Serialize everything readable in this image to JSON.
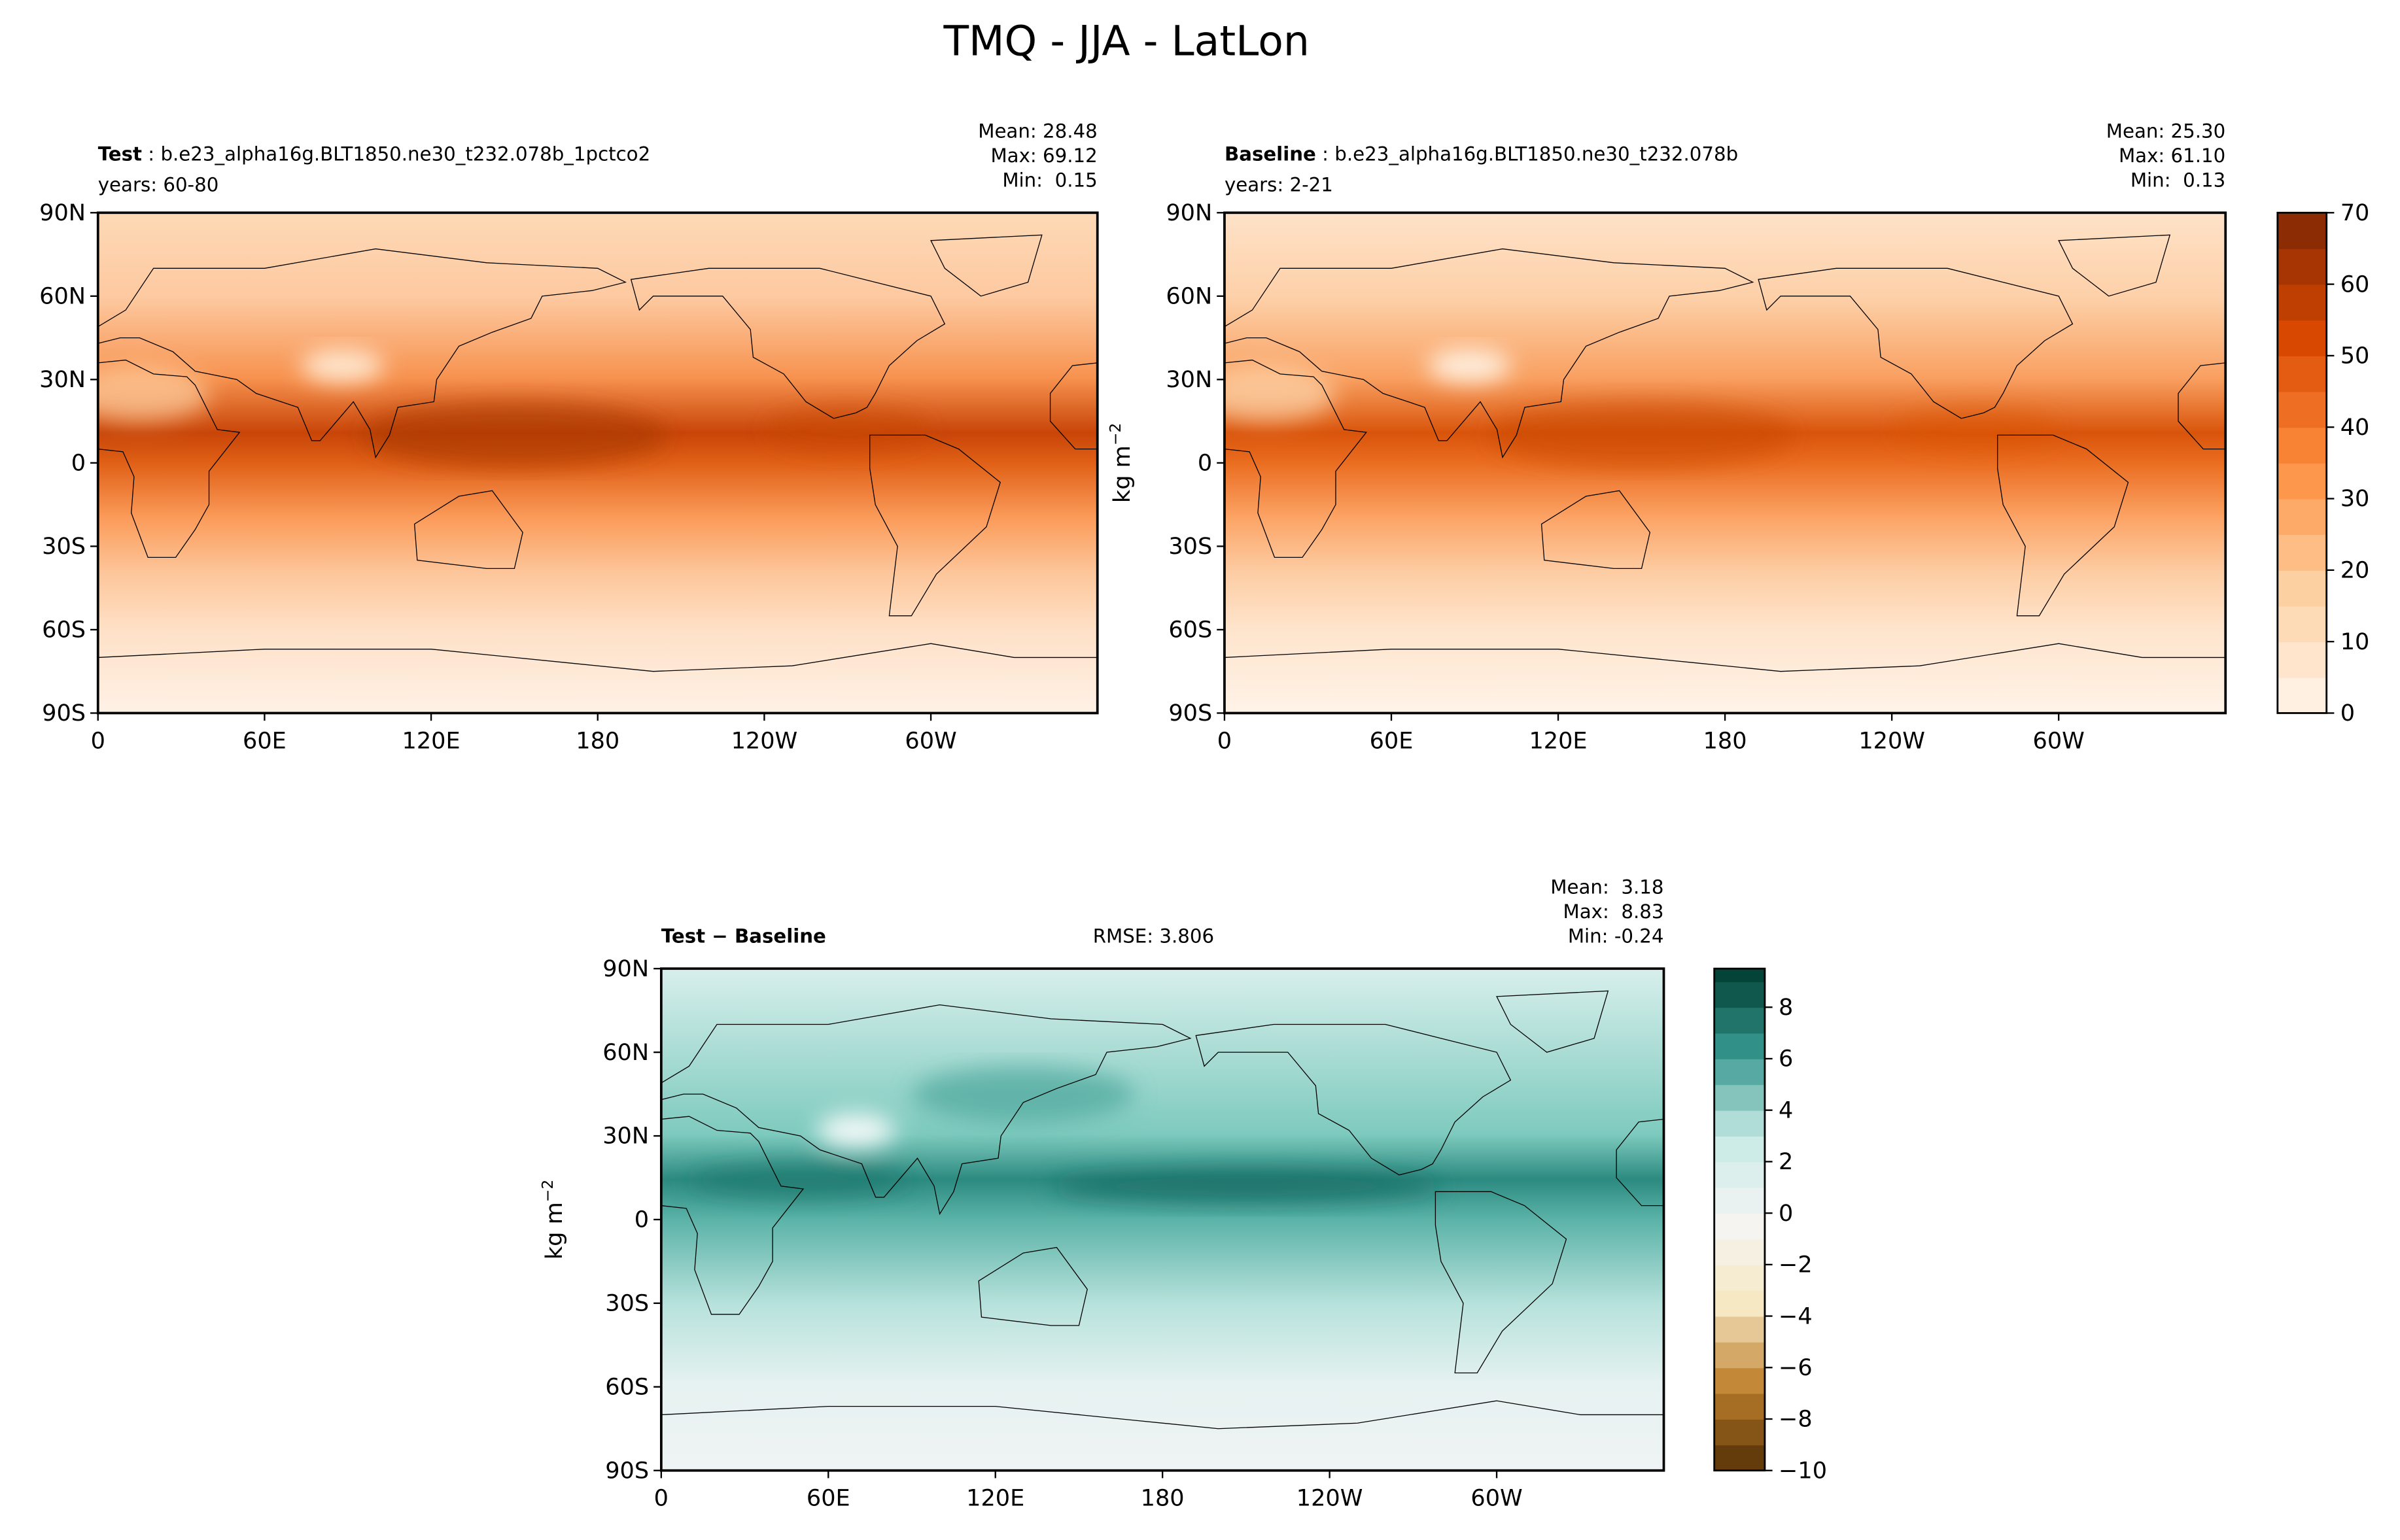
{
  "title": "TMQ - JJA - LatLon",
  "chart_data": [
    {
      "type": "contour_map",
      "name": "Test",
      "case": " : b.e23_alpha16g.BLT1850.ne30_t232.078b_1pctco2",
      "years": "years: 60-80",
      "stats": [
        "Mean: 28.48",
        "Max: 69.12",
        "Min:  0.15"
      ],
      "xlim": [
        0,
        360
      ],
      "xticks": [
        0,
        {
          "value": 60,
          "label": "60E"
        },
        {
          "value": 120,
          "label": "120E"
        },
        180,
        {
          "value": 240,
          "label": "120W"
        },
        {
          "value": 300,
          "label": "60W"
        }
      ],
      "ylim": [
        -90,
        90
      ],
      "yticks": [
        {
          "value": -90,
          "label": "90S"
        },
        {
          "value": -60,
          "label": "60S"
        },
        {
          "value": -30,
          "label": "30S"
        },
        0,
        {
          "value": 30,
          "label": "30N"
        },
        {
          "value": 60,
          "label": "60N"
        },
        {
          "value": 90,
          "label": "90N"
        }
      ]
    },
    {
      "type": "contour_map",
      "name": "Baseline",
      "case": " : b.e23_alpha16g.BLT1850.ne30_t232.078b",
      "years": "years: 2-21",
      "stats": [
        "Mean: 25.30",
        "Max: 61.10",
        "Min:  0.13"
      ],
      "units": "kg m",
      "units_exp": "−2",
      "xlim": [
        0,
        360
      ],
      "xticks": [
        0,
        {
          "value": 60,
          "label": "60E"
        },
        {
          "value": 120,
          "label": "120E"
        },
        180,
        {
          "value": 240,
          "label": "120W"
        },
        {
          "value": 300,
          "label": "60W"
        }
      ],
      "ylim": [
        -90,
        90
      ],
      "yticks": [
        {
          "value": -90,
          "label": "90S"
        },
        {
          "value": -60,
          "label": "60S"
        },
        {
          "value": -30,
          "label": "30S"
        },
        0,
        {
          "value": 30,
          "label": "30N"
        },
        {
          "value": 60,
          "label": "60N"
        },
        {
          "value": 90,
          "label": "90N"
        }
      ],
      "colorbar": {
        "clim": [
          0,
          70
        ],
        "ticks": [
          0,
          10,
          20,
          30,
          40,
          50,
          60,
          70
        ],
        "levels": [
          0,
          5,
          10,
          15,
          20,
          25,
          30,
          35,
          40,
          45,
          50,
          55,
          60,
          65,
          70
        ],
        "cmap": [
          "#fff5eb",
          "#fdd0a2",
          "#fd8d3c",
          "#d94801",
          "#7f2704"
        ]
      }
    },
    {
      "type": "contour_map",
      "name": "Test − Baseline",
      "rmse": "RMSE: 3.806",
      "stats": [
        "Mean:  3.18",
        "Max:  8.83",
        "Min: -0.24"
      ],
      "units": "kg m",
      "units_exp": "−2",
      "xlim": [
        0,
        360
      ],
      "xticks": [
        0,
        {
          "value": 60,
          "label": "60E"
        },
        {
          "value": 120,
          "label": "120E"
        },
        180,
        {
          "value": 240,
          "label": "120W"
        },
        {
          "value": 300,
          "label": "60W"
        }
      ],
      "ylim": [
        -90,
        90
      ],
      "yticks": [
        {
          "value": -90,
          "label": "90S"
        },
        {
          "value": -60,
          "label": "60S"
        },
        {
          "value": -30,
          "label": "30S"
        },
        0,
        {
          "value": 30,
          "label": "30N"
        },
        {
          "value": 60,
          "label": "60N"
        },
        {
          "value": 90,
          "label": "90N"
        }
      ],
      "colorbar": {
        "clim": [
          -10,
          9.5
        ],
        "ticks": [
          {
            "value": -10,
            "label": "−10"
          },
          {
            "value": -8,
            "label": "−8"
          },
          {
            "value": -6,
            "label": "−6"
          },
          {
            "value": -4,
            "label": "−4"
          },
          {
            "value": -2,
            "label": "−2"
          },
          0,
          2,
          4,
          6,
          8
        ],
        "levels": [
          -10,
          -9,
          -8,
          -7,
          -6,
          -5,
          -4,
          -3,
          -2,
          -1,
          0,
          1,
          2,
          3,
          4,
          5,
          6,
          7,
          8,
          9,
          9.5
        ],
        "cmap": [
          "#543005",
          "#bf812d",
          "#f6e8c3",
          "#f5f5f5",
          "#c7eae5",
          "#35978f",
          "#003c30"
        ]
      }
    }
  ]
}
